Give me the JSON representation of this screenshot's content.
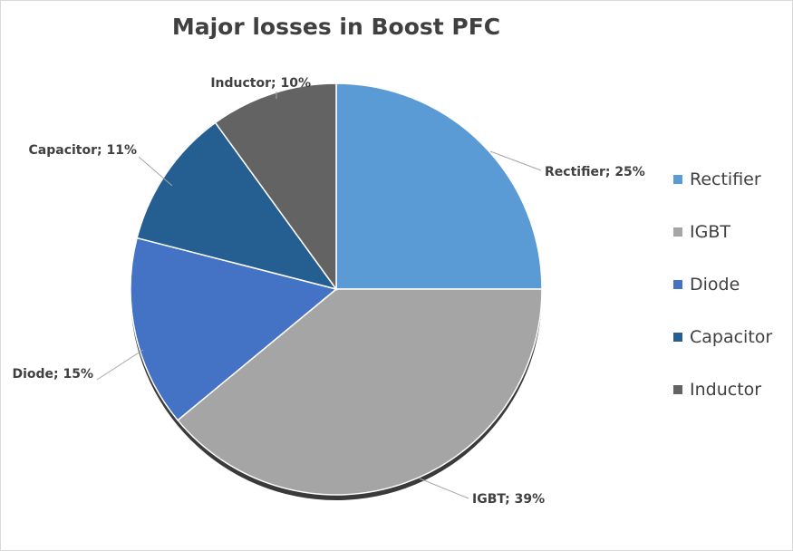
{
  "chart_data": {
    "type": "pie",
    "title": "Major losses in Boost PFC",
    "categories": [
      "Rectifier",
      "IGBT",
      "Diode",
      "Capacitor",
      "Inductor"
    ],
    "values": [
      25,
      39,
      15,
      11,
      10
    ],
    "colors": [
      "#5b9bd5",
      "#a5a5a5",
      "#4472c4",
      "#255e91",
      "#636363"
    ],
    "data_labels": [
      "Rectifier; 25%",
      "IGBT; 39%",
      "Diode; 15%",
      "Capacitor; 11%",
      "Inductor; 10%"
    ],
    "legend_position": "right"
  }
}
